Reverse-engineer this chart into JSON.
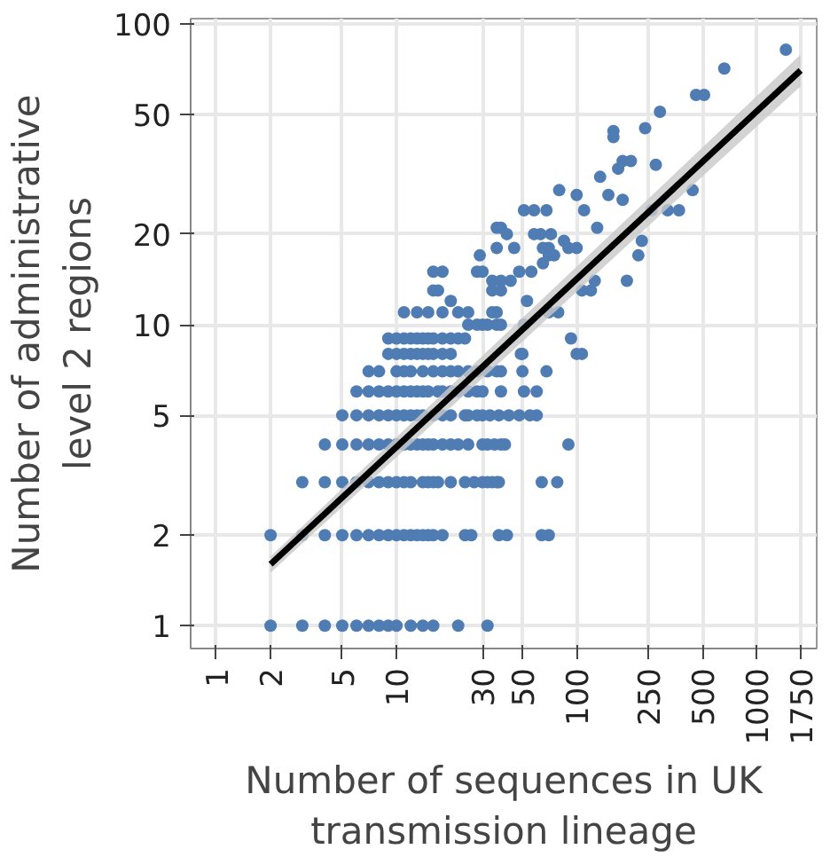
{
  "chart_data": {
    "type": "scatter",
    "xlabel": "Number of sequences in UK\ntransmission lineage",
    "ylabel": "Number of administrative\nlevel 2 regions",
    "log": "xy",
    "grid": true,
    "xlim": [
      0.72,
      2150
    ],
    "ylim": [
      0.84,
      104
    ],
    "xticks": [
      1,
      2,
      5,
      10,
      30,
      50,
      100,
      250,
      500,
      1000,
      1750
    ],
    "yticks": [
      1,
      2,
      5,
      10,
      20,
      50,
      100
    ],
    "series": [
      {
        "color": "#4f7db3",
        "marker": "circle",
        "x": [
          2,
          3,
          4,
          5,
          6,
          7,
          8,
          9,
          10,
          12,
          14,
          16,
          22,
          32,
          2,
          3,
          4,
          5,
          6,
          7,
          8,
          9,
          10,
          11,
          12,
          13,
          14,
          15,
          16,
          18,
          24,
          26,
          37,
          41,
          64,
          70,
          3,
          4,
          5,
          6,
          7,
          8,
          9,
          10,
          11,
          12,
          14,
          15,
          16,
          17,
          20,
          24,
          27,
          30,
          32,
          34,
          36,
          37,
          64,
          78,
          4,
          5,
          6,
          7,
          8,
          9,
          10,
          11,
          12,
          13,
          14,
          15,
          16,
          18,
          20,
          22,
          25,
          30,
          32,
          35,
          38,
          40,
          90,
          5,
          6,
          7,
          8,
          9,
          10,
          11,
          12,
          13,
          14,
          16,
          18,
          20,
          24,
          25,
          28,
          30,
          33,
          37,
          42,
          48,
          55,
          60,
          6,
          7,
          8,
          9,
          10,
          11,
          12,
          13,
          14,
          15,
          17,
          18,
          20,
          22,
          25,
          28,
          30,
          38,
          51,
          60,
          7,
          8,
          10,
          11,
          12,
          14,
          16,
          18,
          20,
          22,
          25,
          28,
          32,
          36,
          38,
          50,
          68,
          9,
          10,
          11,
          12,
          13,
          14,
          15,
          16,
          18,
          20,
          49,
          50,
          100,
          107,
          9,
          10,
          11,
          12,
          13,
          14,
          15,
          16,
          18,
          20,
          22,
          24,
          93,
          25,
          28,
          30,
          32,
          36,
          38,
          51,
          11,
          13,
          15,
          18,
          22,
          25,
          34,
          36,
          70,
          79,
          20,
          53,
          16,
          17,
          34,
          38,
          107,
          120,
          34,
          38,
          43,
          126,
          190,
          16,
          18,
          28,
          30,
          48,
          56,
          65,
          29,
          70,
          75,
          220,
          36,
          45,
          65,
          70,
          90,
          100,
          85,
          230,
          41,
          58,
          63,
          72,
          36,
          38,
          130,
          51,
          58,
          68,
          110,
          260,
          320,
          370,
          180,
          100,
          150,
          80,
          440,
          135,
          170,
          275,
          180,
          200,
          160,
          160,
          240,
          290,
          460,
          510,
          660,
          1450
        ],
        "values": [
          1,
          1,
          1,
          1,
          1,
          1,
          1,
          1,
          1,
          1,
          1,
          1,
          1,
          1,
          2,
          2,
          2,
          2,
          2,
          2,
          2,
          2,
          2,
          2,
          2,
          2,
          2,
          2,
          2,
          2,
          2,
          2,
          2,
          2,
          2,
          2,
          3,
          3,
          3,
          3,
          3,
          3,
          3,
          3,
          3,
          3,
          3,
          3,
          3,
          3,
          3,
          3,
          3,
          3,
          3,
          3,
          3,
          3,
          3,
          3,
          4,
          4,
          4,
          4,
          4,
          4,
          4,
          4,
          4,
          4,
          4,
          4,
          4,
          4,
          4,
          4,
          4,
          4,
          4,
          4,
          4,
          4,
          4,
          5,
          5,
          5,
          5,
          5,
          5,
          5,
          5,
          5,
          5,
          5,
          5,
          5,
          5,
          5,
          5,
          5,
          5,
          5,
          5,
          5,
          5,
          5,
          6,
          6,
          6,
          6,
          6,
          6,
          6,
          6,
          6,
          6,
          6,
          6,
          6,
          6,
          6,
          6,
          6,
          6,
          6,
          6,
          7,
          7,
          7,
          7,
          7,
          7,
          7,
          7,
          7,
          7,
          7,
          7,
          7,
          7,
          7,
          7,
          7,
          8,
          8,
          8,
          8,
          8,
          8,
          8,
          8,
          8,
          8,
          8,
          8,
          8,
          8,
          9,
          9,
          9,
          9,
          9,
          9,
          9,
          9,
          9,
          9,
          9,
          9,
          9,
          10,
          10,
          10,
          10,
          10,
          10,
          10,
          11,
          11,
          11,
          11,
          11,
          11,
          11,
          11,
          11,
          11,
          12,
          12,
          13,
          13,
          13,
          13,
          13,
          13,
          14,
          14,
          14,
          14,
          14,
          15,
          15,
          15,
          15,
          15,
          15,
          16,
          17,
          17,
          17,
          17,
          18,
          18,
          18,
          18,
          18,
          18,
          19,
          19,
          20,
          20,
          20,
          20,
          21,
          21,
          21,
          24,
          24,
          24,
          24,
          24,
          24,
          24,
          26,
          27,
          27,
          28,
          28,
          31,
          33,
          34,
          35,
          35,
          42,
          44,
          45,
          51,
          58,
          58,
          71,
          82
        ]
      },
      {
        "type": "line",
        "color": "#000000",
        "marker": "none",
        "x": [
          2,
          1750
        ],
        "values": [
          1.6,
          70
        ],
        "lower": [
          1.5,
          62
        ],
        "upper": [
          1.7,
          79
        ]
      }
    ]
  }
}
